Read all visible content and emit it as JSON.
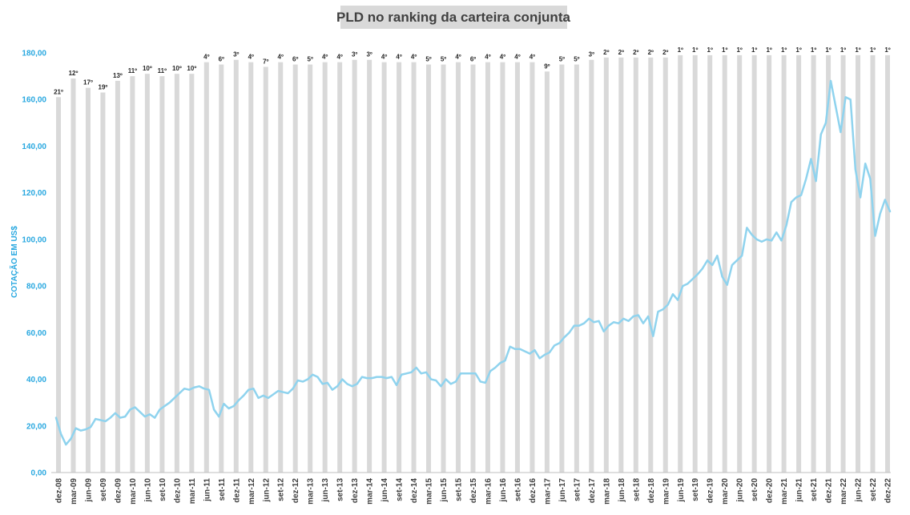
{
  "chart_data": {
    "type": "bar+line",
    "title": "PLD no ranking da carteira conjunta",
    "ylabel": "COTAÇÃO EM US$",
    "ylim": [
      0,
      180
    ],
    "y_ticks": [
      "0,00",
      "20,00",
      "40,00",
      "60,00",
      "80,00",
      "100,00",
      "120,00",
      "140,00",
      "160,00",
      "180,00"
    ],
    "x_tick_labels": [
      "dez-08",
      "mar-09",
      "jun-09",
      "set-09",
      "dez-09",
      "mar-10",
      "jun-10",
      "set-10",
      "dez-10",
      "mar-11",
      "jun-11",
      "set-11",
      "dez-11",
      "mar-12",
      "jun-12",
      "set-12",
      "dez-12",
      "mar-13",
      "jun-13",
      "set-13",
      "dez-13",
      "mar-14",
      "jun-14",
      "set-14",
      "dez-14",
      "mar-15",
      "jun-15",
      "set-15",
      "dez-15",
      "mar-16",
      "jun-16",
      "set-16",
      "dez-16",
      "mar-17",
      "jun-17",
      "set-17",
      "dez-17",
      "mar-18",
      "jun-18",
      "set-18",
      "dez-18",
      "mar-19",
      "jun-19",
      "set-19",
      "dez-19",
      "mar-20",
      "jun-20",
      "set-20",
      "dez-20",
      "mar-21",
      "jun-21",
      "set-21",
      "dez-21",
      "mar-22",
      "jun-22",
      "set-22",
      "dez-22"
    ],
    "bars": {
      "heights": [
        161,
        169,
        165,
        163,
        168,
        170,
        171,
        170,
        171,
        171,
        176,
        175,
        177,
        176,
        174,
        176,
        175,
        175,
        176,
        176,
        177,
        177,
        176,
        176,
        176,
        175,
        175,
        176,
        175,
        176,
        176,
        176,
        176,
        172,
        175,
        175,
        177,
        178,
        178,
        178,
        178,
        178,
        179,
        179,
        179,
        179,
        179,
        179,
        179,
        179,
        179,
        179,
        179,
        179,
        179,
        179,
        179
      ],
      "labels": [
        "21º",
        "12º",
        "17º",
        "19º",
        "13º",
        "11º",
        "10º",
        "11º",
        "10º",
        "10º",
        "4º",
        "6º",
        "3º",
        "4º",
        "7º",
        "4º",
        "6º",
        "5º",
        "4º",
        "4º",
        "3º",
        "3º",
        "4º",
        "4º",
        "4º",
        "5º",
        "5º",
        "4º",
        "6º",
        "4º",
        "4º",
        "4º",
        "4º",
        "9º",
        "5º",
        "5º",
        "3º",
        "2º",
        "2º",
        "2º",
        "2º",
        "2º",
        "1º",
        "1º",
        "1º",
        "1º",
        "1º",
        "1º",
        "1º",
        "1º",
        "1º",
        "1º",
        "1º",
        "1º",
        "1º",
        "1º",
        "1º"
      ]
    },
    "line": {
      "values": [
        23.5,
        16.5,
        12,
        14.5,
        19,
        18,
        18.5,
        19.5,
        23,
        22.5,
        22,
        23.5,
        25.5,
        23.5,
        24,
        27,
        28,
        26,
        24,
        25,
        23.5,
        27,
        28.5,
        30,
        32,
        34,
        36,
        35.5,
        36.5,
        37,
        36,
        35.5,
        27,
        24,
        29.5,
        27.5,
        28.5,
        31,
        33,
        35.5,
        36,
        32,
        33,
        32,
        33.5,
        35,
        34.5,
        34,
        36,
        39.5,
        39,
        40,
        42,
        41,
        38,
        38.5,
        35.5,
        37,
        40,
        38,
        37,
        38,
        41,
        40.5,
        40.5,
        41,
        41,
        40.5,
        41,
        37.5,
        42,
        42.5,
        43,
        45,
        42.5,
        43,
        40,
        39.5,
        37,
        40,
        38,
        39,
        42.5,
        42.5,
        42.5,
        42.5,
        39,
        38.5,
        43.5,
        45,
        47,
        48,
        54,
        53,
        53,
        52,
        51,
        52.5,
        49,
        50.5,
        51.5,
        54.5,
        55.5,
        58,
        60,
        63,
        63,
        64,
        66,
        64.5,
        65,
        60.5,
        63,
        64.5,
        64,
        66,
        65,
        67,
        67.5,
        64,
        67,
        58.5,
        69,
        70,
        72,
        76.5,
        74,
        80,
        81,
        83,
        85,
        87.5,
        91,
        89,
        93,
        84,
        80.5,
        89,
        91,
        93,
        105,
        102,
        100,
        99,
        100,
        99.5,
        103,
        99.5,
        106,
        116,
        118,
        119,
        126,
        134.5,
        125,
        145,
        150,
        168,
        157,
        146,
        161,
        160,
        130,
        118,
        132.5,
        126,
        101.5,
        111,
        117,
        112
      ]
    }
  }
}
